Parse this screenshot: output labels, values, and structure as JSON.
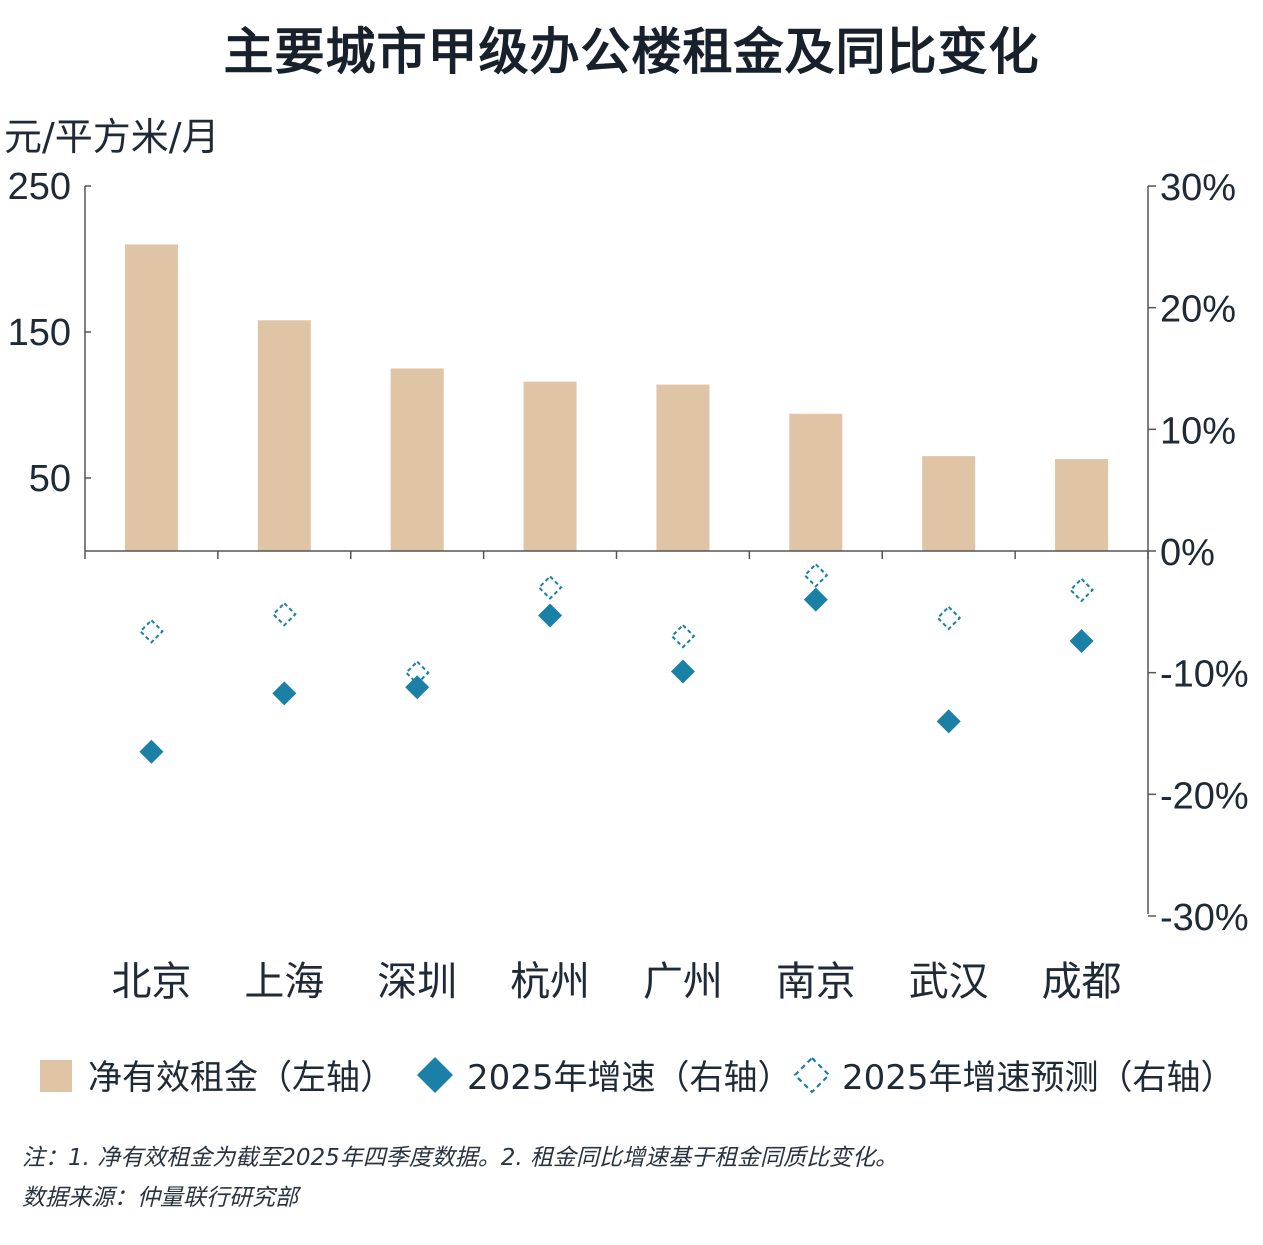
{
  "title": "主要城市甲级办公楼租金及同比变化",
  "left_axis_unit": "元/平方米/月",
  "legend": {
    "bar": "净有效租金（左轴）",
    "diamond": "2025年增速（右轴）",
    "diamond_forecast": "2025年增速预测（右轴）"
  },
  "notes": {
    "line1": "注：1. 净有效租金为截至2025年四季度数据。2. 租金同比增速基于租金同质比变化。",
    "line2": "数据来源：仲量联行研究部"
  },
  "colors": {
    "bar": "#dfc4a6",
    "diamond": "#1a80a6",
    "axis": "#555555"
  },
  "chart_data": {
    "type": "bar",
    "title": "主要城市甲级办公楼租金及同比变化",
    "categories": [
      "北京",
      "上海",
      "深圳",
      "杭州",
      "广州",
      "南京",
      "武汉",
      "成都"
    ],
    "y_left": {
      "label": "元/平方米/月",
      "lim": [
        0,
        250
      ],
      "ticks": [
        50,
        150,
        250
      ]
    },
    "y_right": {
      "lim": [
        -0.3,
        0.3
      ],
      "ticks": [
        "30%",
        "20%",
        "10%",
        "0%",
        "-10%",
        "-20%",
        "-30%"
      ]
    },
    "grid": false,
    "legend_position": "bottom",
    "series": [
      {
        "name": "净有效租金（左轴）",
        "type": "bar",
        "axis": "left",
        "values": [
          210,
          158,
          125,
          116,
          114,
          94,
          65,
          63
        ]
      },
      {
        "name": "2025年增速（右轴）",
        "type": "scatter",
        "marker": "diamond-filled",
        "axis": "right",
        "values": [
          -0.165,
          -0.117,
          -0.112,
          -0.053,
          -0.099,
          -0.04,
          -0.14,
          -0.074
        ]
      },
      {
        "name": "2025年增速预测（右轴）",
        "type": "scatter",
        "marker": "diamond-dashed",
        "axis": "right",
        "values": [
          -0.066,
          -0.052,
          -0.1,
          -0.03,
          -0.07,
          -0.02,
          -0.055,
          -0.032
        ]
      }
    ]
  }
}
